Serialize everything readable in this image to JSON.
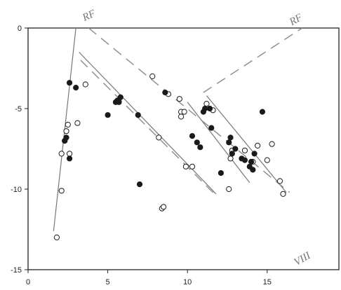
{
  "chart_data": {
    "type": "scatter",
    "title": "",
    "xlabel": "",
    "ylabel": "",
    "xlim": [
      0,
      19.5
    ],
    "ylim": [
      -15,
      0
    ],
    "xticks": [
      0,
      5,
      10,
      15
    ],
    "yticks": [
      0,
      -5,
      -10,
      -15
    ],
    "grid": false,
    "annotations": [
      {
        "text": "RF",
        "x": 3.9,
        "y": 0.6,
        "angle": -25
      },
      {
        "text": "RF",
        "x": 16.9,
        "y": 0.35,
        "angle": -30
      },
      {
        "text": "VIII",
        "x": 17.3,
        "y": -14.5,
        "angle": -30
      }
    ],
    "series": [
      {
        "marker": "open",
        "points": [
          [
            1.8,
            -13.0
          ],
          [
            2.1,
            -10.1
          ],
          [
            2.1,
            -7.8
          ],
          [
            2.3,
            -7.0
          ],
          [
            2.4,
            -6.4
          ],
          [
            2.5,
            -6.0
          ],
          [
            2.6,
            -7.8
          ],
          [
            3.1,
            -5.9
          ],
          [
            3.6,
            -3.5
          ],
          [
            7.8,
            -3.0
          ],
          [
            8.2,
            -6.8
          ],
          [
            8.4,
            -11.2
          ],
          [
            8.5,
            -11.1
          ],
          [
            8.8,
            -4.1
          ],
          [
            9.5,
            -4.4
          ],
          [
            9.6,
            -5.2
          ],
          [
            9.6,
            -5.5
          ],
          [
            9.8,
            -5.2
          ],
          [
            9.9,
            -8.6
          ],
          [
            10.3,
            -8.6
          ],
          [
            11.2,
            -4.7
          ],
          [
            11.6,
            -5.1
          ],
          [
            12.6,
            -10.0
          ],
          [
            12.7,
            -8.1
          ],
          [
            12.8,
            -7.6
          ],
          [
            13.6,
            -7.6
          ],
          [
            14.1,
            -8.3
          ],
          [
            14.4,
            -7.3
          ],
          [
            15.0,
            -8.2
          ],
          [
            15.3,
            -7.2
          ],
          [
            15.8,
            -9.5
          ],
          [
            16.0,
            -10.3
          ]
        ]
      },
      {
        "marker": "filled",
        "points": [
          [
            2.3,
            -7.0
          ],
          [
            2.4,
            -6.8
          ],
          [
            2.6,
            -8.1
          ],
          [
            2.6,
            -3.4
          ],
          [
            3.0,
            -3.7
          ],
          [
            5.0,
            -5.4
          ],
          [
            5.5,
            -4.6
          ],
          [
            5.6,
            -4.5
          ],
          [
            5.7,
            -4.6
          ],
          [
            5.8,
            -4.3
          ],
          [
            6.9,
            -5.4
          ],
          [
            7.0,
            -9.7
          ],
          [
            8.6,
            -4.0
          ],
          [
            10.3,
            -6.7
          ],
          [
            10.6,
            -7.1
          ],
          [
            10.8,
            -7.4
          ],
          [
            11.0,
            -5.2
          ],
          [
            11.1,
            -5.0
          ],
          [
            11.4,
            -5.0
          ],
          [
            11.5,
            -6.2
          ],
          [
            12.1,
            -9.0
          ],
          [
            12.6,
            -7.1
          ],
          [
            12.7,
            -6.8
          ],
          [
            12.8,
            -7.8
          ],
          [
            13.0,
            -7.5
          ],
          [
            13.4,
            -8.1
          ],
          [
            13.6,
            -8.2
          ],
          [
            13.9,
            -8.6
          ],
          [
            14.0,
            -8.3
          ],
          [
            14.1,
            -8.8
          ],
          [
            14.2,
            -7.8
          ],
          [
            14.7,
            -5.2
          ]
        ]
      }
    ],
    "lines": [
      {
        "style": "solid",
        "from": [
          1.6,
          -12.6
        ],
        "to": [
          3.0,
          0.0
        ]
      },
      {
        "style": "solid",
        "from": [
          3.2,
          -1.5
        ],
        "to": [
          11.8,
          -10.3
        ]
      },
      {
        "style": "solid",
        "from": [
          10.0,
          -4.6
        ],
        "to": [
          13.9,
          -9.6
        ]
      },
      {
        "style": "solid",
        "from": [
          11.2,
          -4.2
        ],
        "to": [
          16.2,
          -10.2
        ]
      },
      {
        "style": "dashed",
        "from": [
          3.8,
          0.0
        ],
        "to": [
          16.4,
          -10.2
        ]
      },
      {
        "style": "dashed",
        "from": [
          3.3,
          -2.0
        ],
        "to": [
          11.8,
          -10.4
        ]
      },
      {
        "style": "dashed",
        "from": [
          11.0,
          -4.0
        ],
        "to": [
          17.2,
          0.0
        ]
      }
    ]
  }
}
